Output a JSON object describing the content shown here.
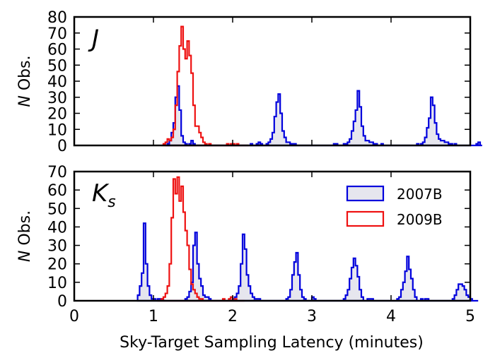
{
  "chart_data": {
    "type": "histogram",
    "xlabel": "Sky-Target Sampling Latency (minutes)",
    "ylabel_italic": "N",
    "ylabel_rest": " Obs.",
    "xlim": [
      0,
      5
    ],
    "xticks": [
      "0",
      "1",
      "2",
      "3",
      "4",
      "5"
    ],
    "bin_width": 0.025,
    "legend": [
      {
        "name": "2007B",
        "color": "#0000dd",
        "fill": "#e6e6ee"
      },
      {
        "name": "2009B",
        "color": "#ee1111",
        "fill": "none"
      }
    ],
    "panels": [
      {
        "label_main": "J",
        "label_sub": "",
        "ylim": [
          0,
          80
        ],
        "yticks": [
          "0",
          "10",
          "20",
          "30",
          "40",
          "50",
          "60",
          "70",
          "80"
        ],
        "series": [
          {
            "name": "2007B",
            "start": 1.15,
            "values": [
              0,
              1,
              3,
              8,
              14,
              30,
              37,
              22,
              6,
              2,
              1,
              0,
              1,
              3,
              1,
              0,
              0,
              0,
              0,
              0,
              0,
              0,
              0,
              0,
              0,
              0,
              0,
              0,
              0,
              0,
              0,
              0,
              0,
              0,
              0,
              0,
              0,
              0,
              0,
              0,
              0,
              0,
              0,
              1,
              0,
              0,
              1,
              2,
              1,
              0,
              0,
              1,
              2,
              4,
              8,
              18,
              27,
              32,
              20,
              9,
              5,
              2,
              2,
              1,
              1,
              1,
              0,
              0,
              0,
              0,
              0,
              0,
              0,
              0,
              0,
              0,
              0,
              0,
              0,
              0,
              0,
              0,
              0,
              0,
              0,
              1,
              1,
              0,
              0,
              0,
              1,
              1,
              2,
              4,
              9,
              15,
              22,
              34,
              24,
              12,
              6,
              3,
              3,
              2,
              2,
              1,
              1,
              0,
              0,
              1,
              0,
              0,
              0,
              0,
              0,
              0,
              0,
              0,
              0,
              0,
              0,
              0,
              0,
              0,
              0,
              0,
              0,
              1,
              0,
              1,
              2,
              5,
              11,
              17,
              30,
              25,
              14,
              7,
              4,
              3,
              3,
              2,
              2,
              1,
              1,
              0,
              1,
              0,
              0,
              0,
              0,
              0,
              0,
              0,
              0,
              0,
              0,
              1,
              2,
              0
            ]
          },
          {
            "name": "2009B",
            "start": 1.1,
            "values": [
              0,
              1,
              2,
              4,
              3,
              5,
              10,
              25,
              46,
              62,
              74,
              60,
              54,
              65,
              56,
              45,
              25,
              12,
              12,
              8,
              5,
              2,
              1,
              0,
              1,
              0,
              0,
              0,
              0,
              0,
              0,
              0,
              0,
              1,
              0,
              1,
              1,
              0,
              1,
              0,
              0,
              0,
              0,
              0
            ]
          }
        ]
      },
      {
        "label_main": "K",
        "label_sub": "s",
        "ylim": [
          0,
          70
        ],
        "yticks": [
          "0",
          "10",
          "20",
          "30",
          "40",
          "50",
          "60",
          "70"
        ],
        "series": [
          {
            "name": "2007B",
            "start": 0.8,
            "values": [
              3,
              8,
              15,
              42,
              20,
              8,
              3,
              1,
              1,
              0,
              1,
              1,
              1,
              0,
              0,
              0,
              0,
              0,
              0,
              0,
              0,
              0,
              0,
              0,
              1,
              2,
              5,
              10,
              30,
              37,
              20,
              12,
              8,
              3,
              2,
              2,
              1,
              0,
              0,
              0,
              0,
              0,
              0,
              0,
              0,
              0,
              0,
              0,
              1,
              2,
              4,
              8,
              20,
              36,
              28,
              14,
              8,
              4,
              2,
              1,
              1,
              1,
              0,
              0,
              0,
              0,
              0,
              0,
              0,
              0,
              0,
              0,
              0,
              0,
              0,
              1,
              2,
              6,
              14,
              21,
              26,
              14,
              6,
              2,
              1,
              0,
              0,
              0,
              2,
              1,
              0,
              0,
              0,
              0,
              0,
              0,
              0,
              0,
              0,
              0,
              0,
              0,
              0,
              0,
              1,
              3,
              6,
              12,
              18,
              23,
              19,
              13,
              6,
              2,
              0,
              0,
              1,
              1,
              1,
              0,
              0,
              0,
              0,
              0,
              0,
              0,
              0,
              0,
              0,
              0,
              0,
              1,
              2,
              6,
              10,
              16,
              24,
              17,
              12,
              6,
              2,
              0,
              0,
              1,
              0,
              1,
              1,
              0,
              0,
              0,
              0,
              0,
              0,
              0,
              0,
              0,
              0,
              0,
              0,
              1,
              3,
              6,
              9,
              9,
              8,
              6,
              3,
              2,
              1,
              0,
              0,
              0
            ]
          },
          {
            "name": "2009B",
            "start": 1.05,
            "values": [
              0,
              0,
              1,
              2,
              4,
              8,
              20,
              45,
              66,
              58,
              67,
              54,
              62,
              48,
              38,
              30,
              17,
              9,
              6,
              4,
              2,
              1,
              1,
              0,
              0,
              0,
              0,
              0,
              0,
              0,
              0,
              0,
              0,
              1,
              0,
              0,
              1,
              2,
              0,
              1,
              0,
              0,
              0,
              0
            ]
          }
        ]
      }
    ]
  }
}
